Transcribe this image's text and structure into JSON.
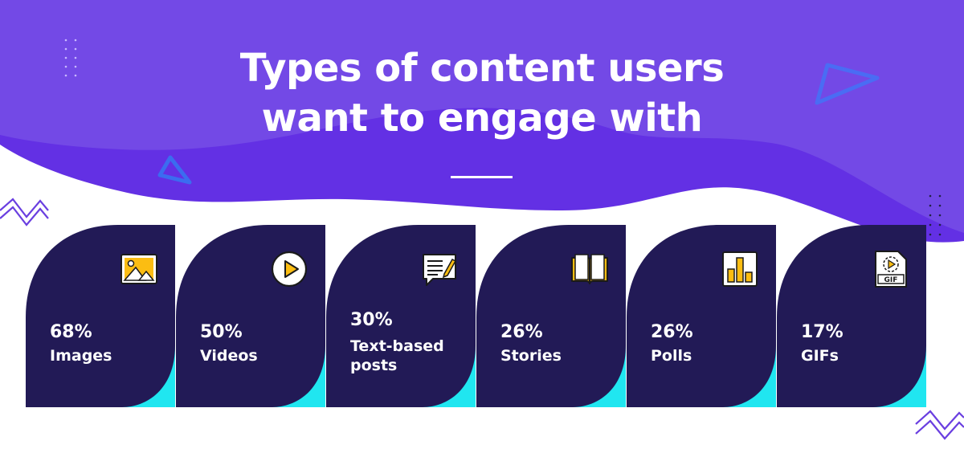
{
  "title": {
    "line1": "Types of content users",
    "line2": "want to engage with"
  },
  "colors": {
    "background": "#ffffff",
    "header_purple": "#7349e6",
    "header_purple_dark": "#6330e4",
    "card_navy": "#221a56",
    "card_accent_cyan": "#20e6f0",
    "icon_yellow": "#fbbd12",
    "decor_blue": "#3b6cf0"
  },
  "chart_data": {
    "type": "bar",
    "title": "Types of content users want to engage with",
    "value_unit": "%",
    "categories": [
      "Images",
      "Videos",
      "Text-based posts",
      "Stories",
      "Polls",
      "GIFs"
    ],
    "values": [
      68,
      50,
      30,
      26,
      26,
      17
    ],
    "value_labels": [
      "68%",
      "50%",
      "30%",
      "26%",
      "26%",
      "17%"
    ],
    "label_lines": [
      [
        "Images"
      ],
      [
        "Videos"
      ],
      [
        "Text-based",
        "posts"
      ],
      [
        "Stories"
      ],
      [
        "Polls"
      ],
      [
        "GIFs"
      ]
    ],
    "icons": [
      "image-icon",
      "play-icon",
      "text-chat-icon",
      "book-icon",
      "bar-chart-icon",
      "gif-file-icon"
    ],
    "icon_texts": [
      "",
      "",
      "",
      "",
      "",
      "GIF"
    ]
  }
}
